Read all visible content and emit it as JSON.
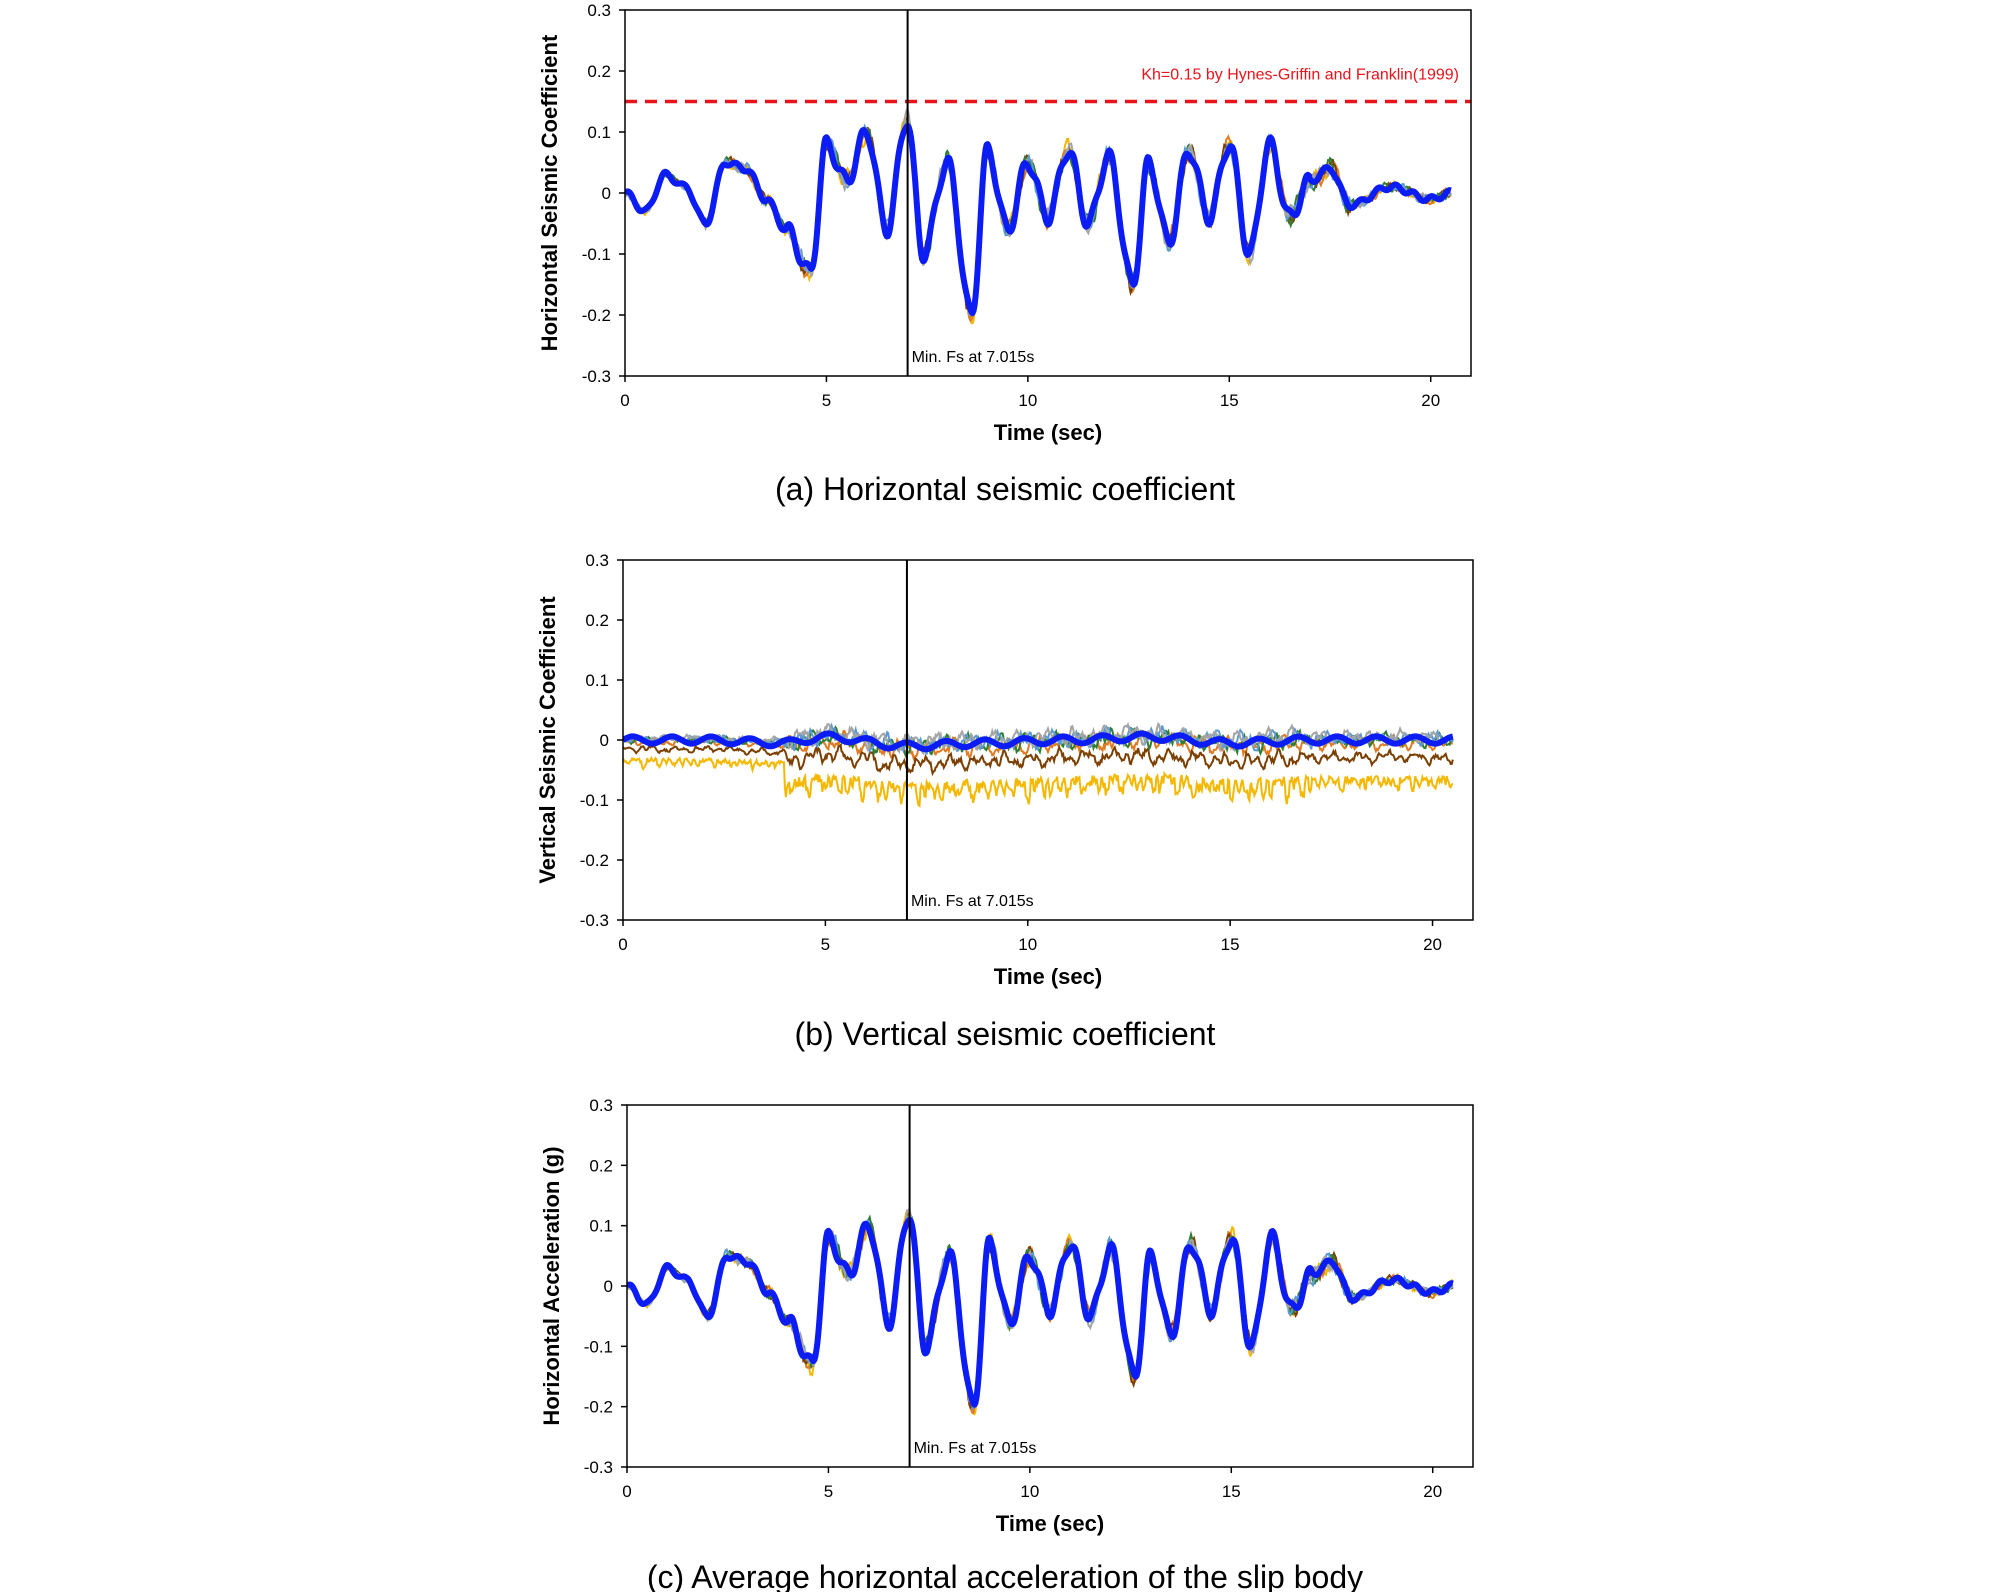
{
  "chart_data": [
    {
      "type": "line",
      "panel": "a",
      "caption": "(a) Horizontal seismic coefficient",
      "xlabel": "Time (sec)",
      "ylabel": "Horizontal Seismic Coefficient",
      "xlim": [
        0,
        21
      ],
      "ylim": [
        -0.3,
        0.3
      ],
      "xticks": [
        0,
        5,
        10,
        15,
        20
      ],
      "yticks": [
        -0.3,
        -0.2,
        -0.1,
        0,
        0.1,
        0.2,
        0.3
      ],
      "ytick_labels": [
        "-0.3",
        "-0.2",
        "-0.1",
        "0",
        "0.1",
        "0.2",
        "0.3"
      ],
      "grid": false,
      "vline": {
        "x": 7.015,
        "label": "Min. Fs at 7.015s"
      },
      "hline": {
        "y": 0.15,
        "label": "Kh=0.15 by Hynes-Griffin and Franklin(1999)",
        "color": "#e8141b"
      },
      "amplitude": 1.0,
      "offset_spread": 0.0,
      "series": [
        {
          "values": [
            [
              0,
              0
            ],
            [
              0.5,
              -0.03
            ],
            [
              1,
              0.03
            ],
            [
              1.5,
              0.01
            ],
            [
              2,
              -0.05
            ],
            [
              2.5,
              0.05
            ],
            [
              3,
              0.04
            ],
            [
              3.5,
              -0.01
            ],
            [
              4,
              -0.06
            ],
            [
              4.6,
              -0.13
            ],
            [
              5,
              0.08
            ],
            [
              5.5,
              0.02
            ],
            [
              6,
              0.1
            ],
            [
              6.5,
              -0.06
            ],
            [
              7,
              0.12
            ],
            [
              7.4,
              -0.1
            ],
            [
              8,
              0.05
            ],
            [
              8.6,
              -0.2
            ],
            [
              9,
              0.07
            ],
            [
              9.5,
              -0.06
            ],
            [
              10,
              0.05
            ],
            [
              10.5,
              -0.04
            ],
            [
              11,
              0.07
            ],
            [
              11.5,
              -0.05
            ],
            [
              12,
              0.06
            ],
            [
              12.6,
              -0.15
            ],
            [
              13,
              0.05
            ],
            [
              13.5,
              -0.08
            ],
            [
              14,
              0.07
            ],
            [
              14.5,
              -0.04
            ],
            [
              15,
              0.08
            ],
            [
              15.5,
              -0.1
            ],
            [
              16,
              0.08
            ],
            [
              16.5,
              -0.04
            ],
            [
              17,
              0.02
            ],
            [
              17.5,
              0.04
            ],
            [
              18,
              -0.02
            ],
            [
              19,
              0.01
            ],
            [
              20,
              -0.01
            ],
            [
              20.5,
              0
            ]
          ],
          "color": "#0b1cf5"
        }
      ],
      "trace_colors": [
        "#f5b800",
        "#e07b24",
        "#7b3f00",
        "#2e7d32",
        "#5b9bd5",
        "#a5a5a5"
      ]
    },
    {
      "type": "line",
      "panel": "b",
      "caption": "(b) Vertical seismic coefficient",
      "xlabel": "Time (sec)",
      "ylabel": "Vertical Seismic Coefficient",
      "xlim": [
        0,
        21
      ],
      "ylim": [
        -0.3,
        0.3
      ],
      "xticks": [
        0,
        5,
        10,
        15,
        20
      ],
      "yticks": [
        -0.3,
        -0.2,
        -0.1,
        0,
        0.1,
        0.2,
        0.3
      ],
      "ytick_labels": [
        "-0.3",
        "-0.2",
        "-0.1",
        "0",
        "0.1",
        "0.2",
        "0.3"
      ],
      "grid": false,
      "vline": {
        "x": 7.015,
        "label": "Min. Fs at 7.015s"
      },
      "amplitude": 0.16,
      "offset_spread": 0.06,
      "series": [
        {
          "values": [
            [
              0,
              0
            ],
            [
              2,
              0
            ],
            [
              4,
              -0.005
            ],
            [
              5,
              0.005
            ],
            [
              7,
              -0.01
            ],
            [
              9,
              -0.005
            ],
            [
              11,
              0
            ],
            [
              13,
              0.005
            ],
            [
              15,
              -0.005
            ],
            [
              17,
              0
            ],
            [
              20.5,
              0
            ]
          ],
          "color": "#0b1cf5"
        }
      ],
      "trace_colors": [
        "#f5b800",
        "#e07b24",
        "#7b3f00",
        "#2e7d32",
        "#5b9bd5",
        "#a5a5a5"
      ]
    },
    {
      "type": "line",
      "panel": "c",
      "caption": "(c) Average horizontal acceleration of the slip body",
      "xlabel": "Time (sec)",
      "ylabel": "Horizontal Acceleration (g)",
      "xlim": [
        0,
        21
      ],
      "ylim": [
        -0.3,
        0.3
      ],
      "xticks": [
        0,
        5,
        10,
        15,
        20
      ],
      "yticks": [
        -0.3,
        -0.2,
        -0.1,
        0,
        0.1,
        0.2,
        0.3
      ],
      "ytick_labels": [
        "-0.3",
        "-0.2",
        "-0.1",
        "0",
        "0.1",
        "0.2",
        "0.3"
      ],
      "grid": false,
      "vline": {
        "x": 7.015,
        "label": "Min. Fs at 7.015s"
      },
      "amplitude": 1.0,
      "offset_spread": 0.0,
      "series": [
        {
          "values": [
            [
              0,
              0
            ],
            [
              0.5,
              -0.03
            ],
            [
              1,
              0.03
            ],
            [
              1.5,
              0.01
            ],
            [
              2,
              -0.05
            ],
            [
              2.5,
              0.05
            ],
            [
              3,
              0.04
            ],
            [
              3.5,
              -0.01
            ],
            [
              4,
              -0.06
            ],
            [
              4.6,
              -0.13
            ],
            [
              5,
              0.08
            ],
            [
              5.5,
              0.02
            ],
            [
              6,
              0.1
            ],
            [
              6.5,
              -0.06
            ],
            [
              7,
              0.12
            ],
            [
              7.4,
              -0.1
            ],
            [
              8,
              0.05
            ],
            [
              8.6,
              -0.2
            ],
            [
              9,
              0.07
            ],
            [
              9.5,
              -0.06
            ],
            [
              10,
              0.05
            ],
            [
              10.5,
              -0.04
            ],
            [
              11,
              0.07
            ],
            [
              11.5,
              -0.05
            ],
            [
              12,
              0.06
            ],
            [
              12.6,
              -0.15
            ],
            [
              13,
              0.05
            ],
            [
              13.5,
              -0.08
            ],
            [
              14,
              0.07
            ],
            [
              14.5,
              -0.04
            ],
            [
              15,
              0.08
            ],
            [
              15.5,
              -0.1
            ],
            [
              16,
              0.08
            ],
            [
              16.5,
              -0.04
            ],
            [
              17,
              0.02
            ],
            [
              17.5,
              0.04
            ],
            [
              18,
              -0.02
            ],
            [
              19,
              0.01
            ],
            [
              20,
              -0.01
            ],
            [
              20.5,
              0
            ]
          ],
          "color": "#0b1cf5"
        }
      ],
      "trace_colors": [
        "#f5b800",
        "#e07b24",
        "#7b3f00",
        "#2e7d32",
        "#5b9bd5",
        "#a5a5a5"
      ]
    }
  ]
}
